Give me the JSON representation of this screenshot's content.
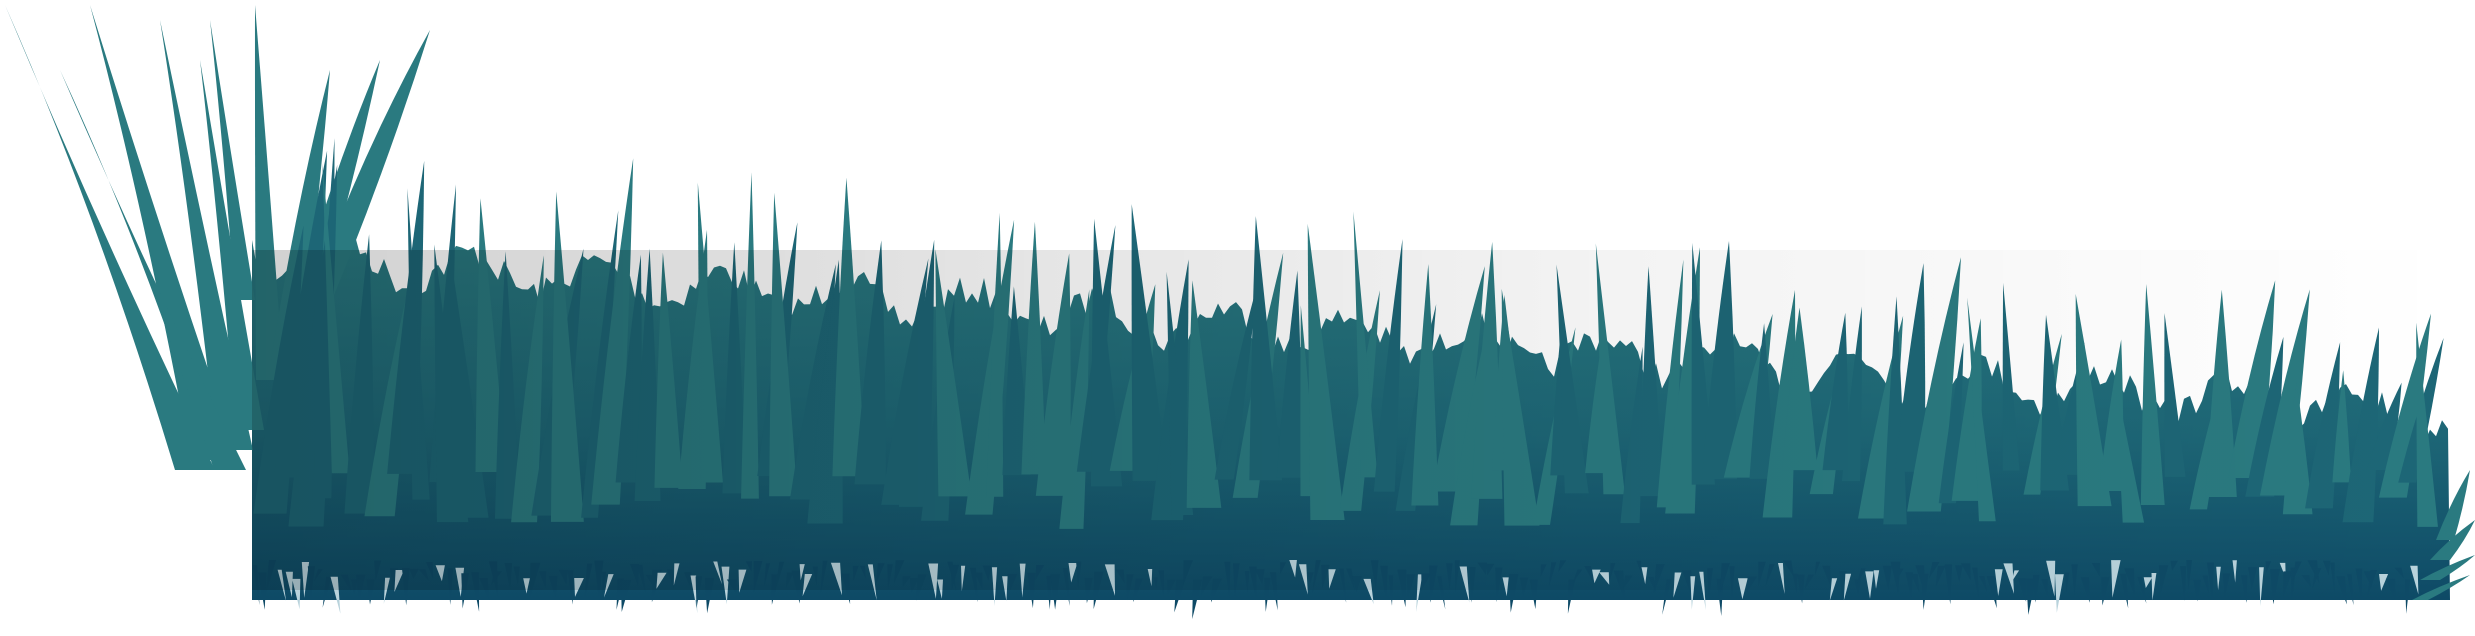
{
  "image": {
    "subject": "grass-silhouette",
    "colors": {
      "background": "#ffffff",
      "blade_light": "#2a7a80",
      "blade_mid": "#1d6676",
      "blade_dark": "#0e4a66",
      "fringe_light": "#b9d3dc"
    }
  }
}
